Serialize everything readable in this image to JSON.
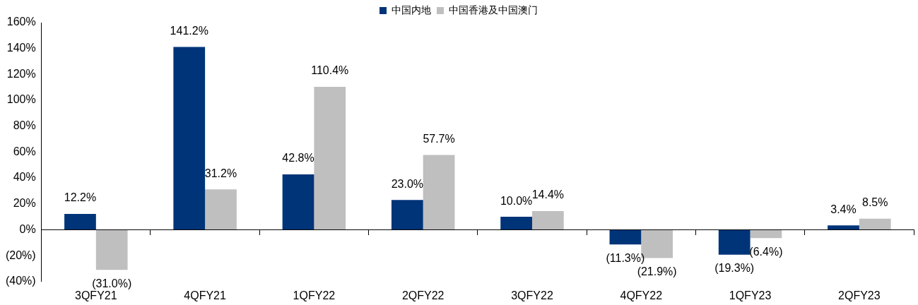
{
  "chart_data": {
    "type": "bar",
    "categories": [
      "3QFY21",
      "4QFY21",
      "1QFY22",
      "2QFY22",
      "3QFY22",
      "4QFY22",
      "1QFY23",
      "2QFY23"
    ],
    "series": [
      {
        "name": "中国内地",
        "color": "#003478",
        "values": [
          12.2,
          141.2,
          42.8,
          23.0,
          10.0,
          -11.3,
          -19.3,
          3.4
        ],
        "value_labels": [
          "12.2%",
          "141.2%",
          "42.8%",
          "23.0%",
          "10.0%",
          "(11.3%)",
          "(19.3%)",
          "3.4%"
        ]
      },
      {
        "name": "中国香港及中国澳门",
        "color": "#bfbfbf",
        "values": [
          -31.0,
          31.2,
          110.4,
          57.7,
          14.4,
          -21.9,
          -6.4,
          8.5
        ],
        "value_labels": [
          "(31.0%)",
          "31.2%",
          "110.4%",
          "57.7%",
          "14.4%",
          "(21.9%)",
          "(6.4%)",
          "8.5%"
        ]
      }
    ],
    "ylim": [
      -40,
      160
    ],
    "yticks": [
      {
        "value": -40,
        "label": "(40%)"
      },
      {
        "value": -20,
        "label": "(20%)"
      },
      {
        "value": 0,
        "label": "0%"
      },
      {
        "value": 20,
        "label": "20%"
      },
      {
        "value": 40,
        "label": "40%"
      },
      {
        "value": 60,
        "label": "60%"
      },
      {
        "value": 80,
        "label": "80%"
      },
      {
        "value": 100,
        "label": "100%"
      },
      {
        "value": 120,
        "label": "120%"
      },
      {
        "value": 140,
        "label": "140%"
      },
      {
        "value": 160,
        "label": "160%"
      }
    ],
    "ref_lines": [
      {
        "axis": "y",
        "value": 0,
        "color": "#000000"
      }
    ],
    "legend": "top",
    "grid": false
  }
}
